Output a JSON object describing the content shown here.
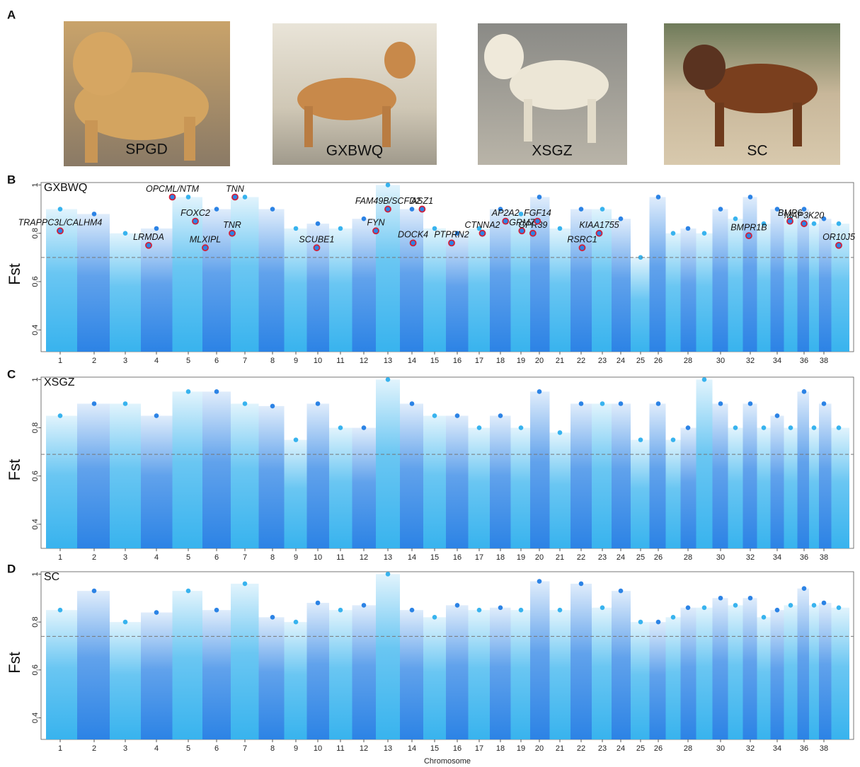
{
  "panel_labels": [
    "A",
    "B",
    "C",
    "D"
  ],
  "photos": [
    {
      "label": "SPGD"
    },
    {
      "label": "GXBWQ"
    },
    {
      "label": "XSGZ"
    },
    {
      "label": "SC"
    }
  ],
  "chart_data": [
    {
      "type": "manhattan",
      "title": "GXBWQ",
      "ylabel": "Fst",
      "x": [
        1,
        2,
        3,
        4,
        5,
        6,
        7,
        8,
        9,
        10,
        11,
        12,
        13,
        14,
        15,
        16,
        17,
        18,
        19,
        20,
        21,
        22,
        23,
        24,
        25,
        26,
        27,
        28,
        29,
        30,
        31,
        32,
        33,
        34,
        35,
        36,
        37,
        38,
        39
      ],
      "values": [
        0.9,
        0.88,
        0.8,
        0.82,
        0.95,
        0.9,
        0.95,
        0.9,
        0.82,
        0.84,
        0.82,
        0.86,
        1.0,
        0.9,
        0.82,
        0.8,
        0.82,
        0.9,
        0.88,
        0.95,
        0.82,
        0.9,
        0.9,
        0.86,
        0.7,
        0.95,
        0.8,
        0.82,
        0.8,
        0.9,
        0.86,
        0.95,
        0.84,
        0.9,
        0.86,
        0.9,
        0.84,
        0.86,
        0.84
      ],
      "colors": [
        "#38b3ee",
        "#2c83e5"
      ],
      "threshold": 0.7,
      "xlim": [
        0.5,
        39.5
      ],
      "xticks": [
        1,
        2,
        3,
        4,
        5,
        6,
        7,
        8,
        9,
        10,
        11,
        12,
        13,
        14,
        15,
        16,
        17,
        18,
        19,
        20,
        21,
        22,
        23,
        24,
        25,
        26,
        28,
        30,
        32,
        34,
        36,
        38
      ],
      "ylim": [
        0.31,
        1.01
      ],
      "yticks": [
        0.4,
        0.6,
        0.8,
        1
      ],
      "annotations": [
        {
          "label": "TRAPPC3L/CALHM4",
          "x": 1.0,
          "y": 0.81
        },
        {
          "label": "OPCML/NTM",
          "x": 4.5,
          "y": 0.95
        },
        {
          "label": "FOXC2",
          "x": 5.25,
          "y": 0.85
        },
        {
          "label": "LRMDA",
          "x": 3.75,
          "y": 0.75
        },
        {
          "label": "MLXIPL",
          "x": 5.6,
          "y": 0.74
        },
        {
          "label": "TNR",
          "x": 6.55,
          "y": 0.8
        },
        {
          "label": "TNN",
          "x": 6.65,
          "y": 0.95
        },
        {
          "label": "SCUBE1",
          "x": 9.95,
          "y": 0.74
        },
        {
          "label": "FAM49B/SCFD2",
          "x": 13.0,
          "y": 0.9
        },
        {
          "label": "FYN",
          "x": 12.5,
          "y": 0.81
        },
        {
          "label": "ASZ1",
          "x": 14.45,
          "y": 0.9
        },
        {
          "label": "DOCK4",
          "x": 14.05,
          "y": 0.76
        },
        {
          "label": "PTPRN2",
          "x": 15.75,
          "y": 0.76
        },
        {
          "label": "CTNNA2",
          "x": 17.15,
          "y": 0.8
        },
        {
          "label": "AP2A2",
          "x": 18.25,
          "y": 0.85
        },
        {
          "label": "GRM7",
          "x": 19.05,
          "y": 0.81
        },
        {
          "label": "GPR39",
          "x": 19.65,
          "y": 0.8
        },
        {
          "label": "FGF14",
          "x": 19.9,
          "y": 0.85
        },
        {
          "label": "RSRC1",
          "x": 22.05,
          "y": 0.74
        },
        {
          "label": "KIAA1755",
          "x": 22.85,
          "y": 0.8
        },
        {
          "label": "BMPR1B",
          "x": 31.9,
          "y": 0.79
        },
        {
          "label": "BMP6",
          "x": 34.95,
          "y": 0.85
        },
        {
          "label": "MAP3K20",
          "x": 36.0,
          "y": 0.84
        },
        {
          "label": "OR10J5",
          "x": 39.0,
          "y": 0.75
        }
      ]
    },
    {
      "type": "manhattan",
      "title": "XSGZ",
      "ylabel": "Fst",
      "x": [
        1,
        2,
        3,
        4,
        5,
        6,
        7,
        8,
        9,
        10,
        11,
        12,
        13,
        14,
        15,
        16,
        17,
        18,
        19,
        20,
        21,
        22,
        23,
        24,
        25,
        26,
        27,
        28,
        29,
        30,
        31,
        32,
        33,
        34,
        35,
        36,
        37,
        38,
        39
      ],
      "values": [
        0.85,
        0.9,
        0.9,
        0.85,
        0.95,
        0.95,
        0.9,
        0.89,
        0.75,
        0.9,
        0.8,
        0.8,
        1.0,
        0.9,
        0.85,
        0.85,
        0.8,
        0.85,
        0.8,
        0.95,
        0.78,
        0.9,
        0.9,
        0.9,
        0.75,
        0.9,
        0.75,
        0.8,
        1.0,
        0.9,
        0.8,
        0.9,
        0.8,
        0.85,
        0.8,
        0.95,
        0.8,
        0.9,
        0.8
      ],
      "colors": [
        "#38b3ee",
        "#2c83e5"
      ],
      "threshold": 0.69,
      "xlim": [
        0.5,
        39.5
      ],
      "xticks": [
        1,
        2,
        3,
        4,
        5,
        6,
        7,
        8,
        9,
        10,
        11,
        12,
        13,
        14,
        15,
        16,
        17,
        18,
        19,
        20,
        21,
        22,
        23,
        24,
        25,
        26,
        28,
        30,
        32,
        34,
        36,
        38
      ],
      "ylim": [
        0.3,
        1.01
      ],
      "yticks": [
        0.4,
        0.6,
        0.8,
        1
      ]
    },
    {
      "type": "manhattan",
      "title": "SC",
      "ylabel": "Fst",
      "xlabel": "Chromosome",
      "x": [
        1,
        2,
        3,
        4,
        5,
        6,
        7,
        8,
        9,
        10,
        11,
        12,
        13,
        14,
        15,
        16,
        17,
        18,
        19,
        20,
        21,
        22,
        23,
        24,
        25,
        26,
        27,
        28,
        29,
        30,
        31,
        32,
        33,
        34,
        35,
        36,
        37,
        38,
        39
      ],
      "values": [
        0.85,
        0.93,
        0.8,
        0.84,
        0.93,
        0.85,
        0.96,
        0.82,
        0.8,
        0.88,
        0.85,
        0.87,
        1.0,
        0.85,
        0.82,
        0.87,
        0.85,
        0.86,
        0.85,
        0.97,
        0.85,
        0.96,
        0.86,
        0.93,
        0.8,
        0.8,
        0.82,
        0.86,
        0.86,
        0.9,
        0.87,
        0.9,
        0.82,
        0.85,
        0.87,
        0.94,
        0.87,
        0.88,
        0.86
      ],
      "colors": [
        "#38b3ee",
        "#2c83e5"
      ],
      "threshold": 0.74,
      "xlim": [
        0.5,
        39.5
      ],
      "xticks": [
        1,
        2,
        3,
        4,
        5,
        6,
        7,
        8,
        9,
        10,
        11,
        12,
        13,
        14,
        15,
        16,
        17,
        18,
        19,
        20,
        21,
        22,
        23,
        24,
        25,
        26,
        28,
        30,
        32,
        34,
        36,
        38
      ],
      "ylim": [
        0.31,
        1.01
      ],
      "yticks": [
        0.4,
        0.6,
        0.8,
        1
      ]
    }
  ]
}
